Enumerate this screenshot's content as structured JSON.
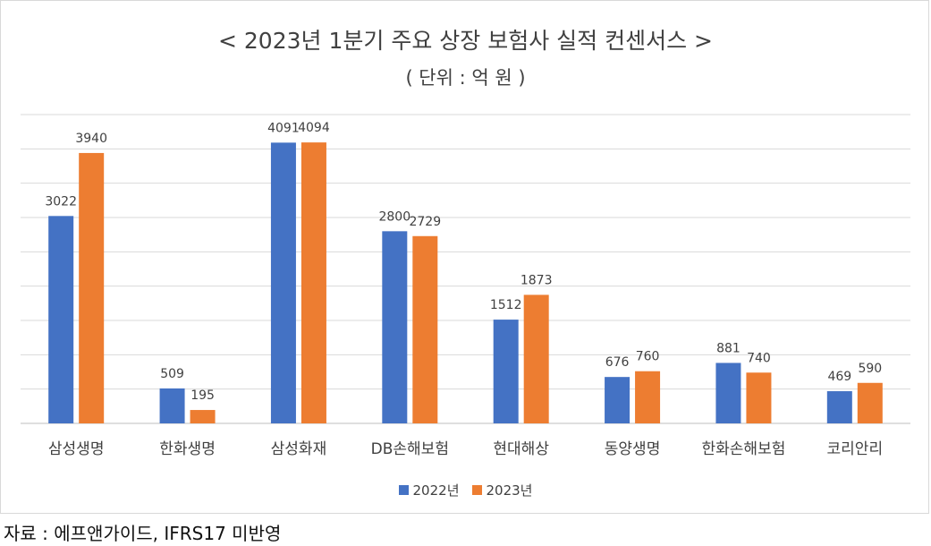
{
  "chart_data": {
    "type": "bar",
    "title": "< 2023년 1분기 주요 상장 보험사 실적 컨센서스 >",
    "subtitle": "( 단위 : 억 원 )",
    "categories": [
      "삼성생명",
      "한화생명",
      "삼성화재",
      "DB손해보험",
      "현대해상",
      "동양생명",
      "한화손해보험",
      "코리안리"
    ],
    "series": [
      {
        "name": "2022년",
        "color": "#4472c4",
        "values": [
          3022,
          509,
          4091,
          2800,
          1512,
          676,
          881,
          469
        ]
      },
      {
        "name": "2023년",
        "color": "#ed7d31",
        "values": [
          3940,
          195,
          4094,
          2729,
          1873,
          760,
          740,
          590
        ]
      }
    ],
    "ylim": [
      0,
      4500
    ],
    "grid": true,
    "gridline_step": 500,
    "data_labels": true,
    "legend_position": "bottom"
  },
  "source_note": "자료 : 에프앤가이드, IFRS17 미반영"
}
